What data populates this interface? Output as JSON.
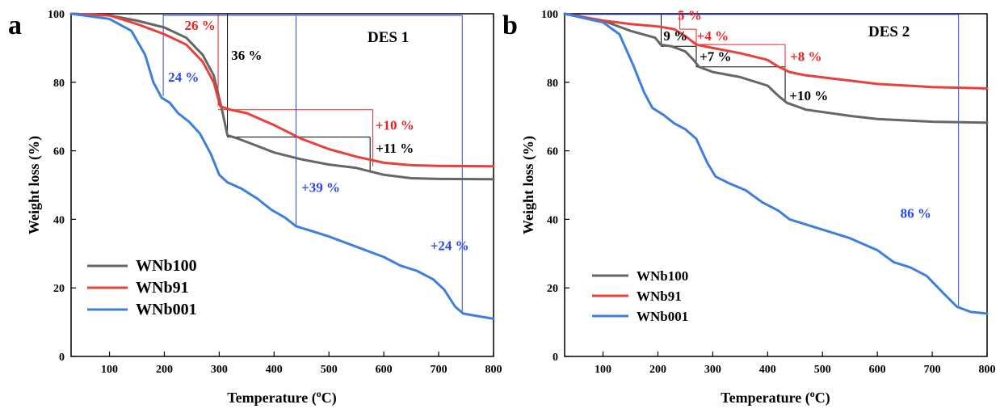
{
  "colors": {
    "WNb100": "#666666",
    "WNb91": "#e8403a",
    "WNb001": "#3f7fdc",
    "black": "#000000",
    "red": "#ee2222",
    "blue": "#2b46e6"
  },
  "chart_data": [
    {
      "panel": "a",
      "type": "line",
      "title": "DES 1",
      "xlabel": "Temperature (oC)",
      "ylabel": "Weight loss (%)",
      "xlim": [
        30,
        800
      ],
      "ylim": [
        0,
        100
      ],
      "xticks": [
        100,
        200,
        300,
        400,
        500,
        600,
        700,
        800
      ],
      "yticks": [
        0,
        20,
        40,
        60,
        80,
        100
      ],
      "legend_position": "bottom-left",
      "series": [
        {
          "name": "WNb100",
          "color": "#666666",
          "points": [
            [
              30,
              100
            ],
            [
              100,
              99.5
            ],
            [
              150,
              98
            ],
            [
              200,
              96
            ],
            [
              240,
              93
            ],
            [
              270,
              88
            ],
            [
              290,
              82
            ],
            [
              305,
              72
            ],
            [
              315,
              64.5
            ],
            [
              330,
              63.8
            ],
            [
              360,
              62
            ],
            [
              400,
              59.5
            ],
            [
              450,
              57.5
            ],
            [
              500,
              56
            ],
            [
              550,
              55
            ],
            [
              600,
              53
            ],
            [
              650,
              52
            ],
            [
              700,
              51.8
            ],
            [
              800,
              51.7
            ]
          ]
        },
        {
          "name": "WNb91",
          "color": "#e8403a",
          "points": [
            [
              30,
              100
            ],
            [
              100,
              99.5
            ],
            [
              150,
              97
            ],
            [
              200,
              94
            ],
            [
              240,
              91
            ],
            [
              270,
              86
            ],
            [
              290,
              80
            ],
            [
              302,
              73
            ],
            [
              320,
              72
            ],
            [
              350,
              71
            ],
            [
              400,
              67.5
            ],
            [
              450,
              63.5
            ],
            [
              500,
              60.5
            ],
            [
              550,
              58.3
            ],
            [
              600,
              56.5
            ],
            [
              650,
              55.8
            ],
            [
              700,
              55.6
            ],
            [
              800,
              55.5
            ]
          ]
        },
        {
          "name": "WNb001",
          "color": "#3f7fdc",
          "points": [
            [
              30,
              100
            ],
            [
              100,
              98.5
            ],
            [
              140,
              95
            ],
            [
              165,
              88
            ],
            [
              180,
              80
            ],
            [
              195,
              75.5
            ],
            [
              210,
              74
            ],
            [
              225,
              71
            ],
            [
              245,
              68.5
            ],
            [
              265,
              65
            ],
            [
              285,
              59
            ],
            [
              300,
              53
            ],
            [
              315,
              50.8
            ],
            [
              340,
              49
            ],
            [
              370,
              46
            ],
            [
              395,
              42.8
            ],
            [
              420,
              40.5
            ],
            [
              440,
              38
            ],
            [
              470,
              36.5
            ],
            [
              500,
              35
            ],
            [
              550,
              32
            ],
            [
              600,
              29
            ],
            [
              630,
              26.5
            ],
            [
              660,
              25
            ],
            [
              690,
              22.5
            ],
            [
              710,
              19.5
            ],
            [
              730,
              14.5
            ],
            [
              745,
              12.5
            ],
            [
              770,
              11.8
            ],
            [
              800,
              11
            ]
          ]
        }
      ],
      "annotations": [
        {
          "text": "26 %",
          "color": "#ee2222",
          "x": 265,
          "y": 95.3
        },
        {
          "text": "36 %",
          "color": "#000000",
          "x": 350,
          "y": 86.5
        },
        {
          "text": "24 %",
          "color": "#2b46e6",
          "x": 235,
          "y": 80.2
        },
        {
          "text": "+10 %",
          "color": "#ee2222",
          "x": 620,
          "y": 66.2
        },
        {
          "text": "+11 %",
          "color": "#000000",
          "x": 620,
          "y": 59.4
        },
        {
          "text": "+39 %",
          "color": "#2b46e6",
          "x": 485,
          "y": 48
        },
        {
          "text": "+24 %",
          "color": "#2b46e6",
          "x": 720,
          "y": 31
        }
      ],
      "brackets": [
        {
          "color": "#ee2222",
          "segments": [
            [
              [
                298,
                100
              ],
              [
                298,
                73
              ]
            ],
            [
              [
                298,
                72
              ],
              [
                580,
                72
              ]
            ],
            [
              [
                580,
                72
              ],
              [
                580,
                55.5
              ]
            ]
          ]
        },
        {
          "color": "#000000",
          "segments": [
            [
              [
                315,
                100
              ],
              [
                315,
                64
              ]
            ],
            [
              [
                315,
                64
              ],
              [
                575,
                64
              ]
            ],
            [
              [
                575,
                64
              ],
              [
                575,
                54
              ]
            ]
          ]
        },
        {
          "color": "#2b46e6",
          "segments": [
            [
              [
                198,
                100
              ],
              [
                198,
                76
              ]
            ],
            [
              [
                198,
                99.5
              ],
              [
                440,
                99.5
              ]
            ],
            [
              [
                440,
                99.5
              ],
              [
                440,
                38
              ]
            ],
            [
              [
                440,
                99.5
              ],
              [
                743,
                99.5
              ]
            ],
            [
              [
                743,
                99.5
              ],
              [
                743,
                12.5
              ]
            ]
          ]
        }
      ]
    },
    {
      "panel": "b",
      "type": "line",
      "title": "DES 2",
      "xlabel": "Temperature (oC)",
      "ylabel": "Weight loss (%)",
      "xlim": [
        30,
        800
      ],
      "ylim": [
        0,
        100
      ],
      "xticks": [
        100,
        200,
        300,
        400,
        500,
        600,
        700,
        800
      ],
      "yticks": [
        0,
        20,
        40,
        60,
        80,
        100
      ],
      "legend_position": "bottom-left",
      "series": [
        {
          "name": "WNb100",
          "color": "#666666",
          "points": [
            [
              30,
              100
            ],
            [
              100,
              98
            ],
            [
              150,
              95
            ],
            [
              195,
              93
            ],
            [
              205,
              91
            ],
            [
              225,
              90.5
            ],
            [
              250,
              89
            ],
            [
              265,
              86.5
            ],
            [
              275,
              84.5
            ],
            [
              300,
              83
            ],
            [
              350,
              81.5
            ],
            [
              400,
              79
            ],
            [
              420,
              76
            ],
            [
              435,
              74
            ],
            [
              470,
              72
            ],
            [
              550,
              70.2
            ],
            [
              600,
              69.3
            ],
            [
              700,
              68.5
            ],
            [
              800,
              68.2
            ]
          ]
        },
        {
          "name": "WNb91",
          "color": "#e8403a",
          "points": [
            [
              30,
              100
            ],
            [
              100,
              98
            ],
            [
              150,
              97
            ],
            [
              200,
              96.3
            ],
            [
              230,
              95.5
            ],
            [
              250,
              93.5
            ],
            [
              270,
              91
            ],
            [
              300,
              90
            ],
            [
              350,
              88.5
            ],
            [
              400,
              86.5
            ],
            [
              420,
              84.5
            ],
            [
              440,
              83
            ],
            [
              470,
              82
            ],
            [
              550,
              80.5
            ],
            [
              600,
              79.5
            ],
            [
              700,
              78.6
            ],
            [
              800,
              78.2
            ]
          ]
        },
        {
          "name": "WNb001",
          "color": "#3f7fdc",
          "points": [
            [
              30,
              100
            ],
            [
              100,
              97.5
            ],
            [
              130,
              94
            ],
            [
              155,
              85
            ],
            [
              175,
              77
            ],
            [
              190,
              72.5
            ],
            [
              210,
              70.5
            ],
            [
              230,
              68
            ],
            [
              250,
              66.3
            ],
            [
              270,
              63.5
            ],
            [
              290,
              56.5
            ],
            [
              305,
              52.5
            ],
            [
              330,
              50.5
            ],
            [
              360,
              48.5
            ],
            [
              390,
              45
            ],
            [
              420,
              42.5
            ],
            [
              440,
              40
            ],
            [
              470,
              38.5
            ],
            [
              500,
              37
            ],
            [
              550,
              34.5
            ],
            [
              600,
              31
            ],
            [
              630,
              27.5
            ],
            [
              660,
              26
            ],
            [
              690,
              23.5
            ],
            [
              720,
              18.5
            ],
            [
              745,
              14.5
            ],
            [
              770,
              13
            ],
            [
              800,
              12.5
            ]
          ]
        }
      ],
      "annotations": [
        {
          "text": "5 %",
          "color": "#ee2222",
          "x": 258,
          "y": 98.2
        },
        {
          "text": "9 %",
          "color": "#000000",
          "x": 232,
          "y": 92.2
        },
        {
          "text": "+4 %",
          "color": "#ee2222",
          "x": 300,
          "y": 92.2
        },
        {
          "text": "+7 %",
          "color": "#000000",
          "x": 305,
          "y": 86.2
        },
        {
          "text": "+8 %",
          "color": "#ee2222",
          "x": 470,
          "y": 86.2
        },
        {
          "text": "+10 %",
          "color": "#000000",
          "x": 475,
          "y": 74.8
        },
        {
          "text": "86 %",
          "color": "#2b46e6",
          "x": 670,
          "y": 40.4
        }
      ],
      "brackets": [
        {
          "color": "#000000",
          "segments": [
            [
              [
                206,
                100
              ],
              [
                206,
                90.5
              ]
            ],
            [
              [
                206,
                90.5
              ],
              [
                270,
                90.5
              ]
            ],
            [
              [
                270,
                90.5
              ],
              [
                270,
                84.5
              ]
            ],
            [
              [
                270,
                84.5
              ],
              [
                432,
                84.5
              ]
            ],
            [
              [
                432,
                84.5
              ],
              [
                432,
                74
              ]
            ]
          ]
        },
        {
          "color": "#ee2222",
          "segments": [
            [
              [
                240,
                100
              ],
              [
                240,
                95.5
              ]
            ],
            [
              [
                240,
                95.5
              ],
              [
                270,
                95.5
              ]
            ],
            [
              [
                270,
                95.5
              ],
              [
                270,
                91
              ]
            ],
            [
              [
                270,
                91
              ],
              [
                268,
                91
              ]
            ],
            [
              [
                300,
                91
              ],
              [
                300,
                91
              ]
            ],
            [
              [
                270,
                91
              ],
              [
                300,
                91
              ]
            ],
            [
              [
                300,
                91
              ],
              [
                300,
                91
              ]
            ],
            [
              [
                300,
                91
              ],
              [
                300,
                91
              ]
            ],
            [
              [
                300,
                91
              ],
              [
                300,
                91
              ]
            ]
          ]
        },
        {
          "color": "#ee2222",
          "segments": [
            [
              [
                300,
                91
              ],
              [
                300,
                91
              ]
            ],
            [
              [
                300,
                91
              ],
              [
                300,
                91
              ]
            ],
            [
              [
                300,
                91
              ],
              [
                300,
                91
              ]
            ],
            [
              [
                300,
                91
              ],
              [
                300,
                91
              ]
            ],
            [
              [
                300,
                91
              ],
              [
                300,
                91
              ]
            ],
            [
              [
                300,
                91
              ],
              [
                300,
                91
              ]
            ],
            [
              [
                300,
                91
              ],
              [
                300,
                91
              ]
            ],
            [
              [
                300,
                91
              ],
              [
                300,
                91
              ]
            ],
            [
              [
                270,
                91
              ],
              [
                432,
                91
              ]
            ],
            [
              [
                432,
                91
              ],
              [
                432,
                83.5
              ]
            ]
          ]
        },
        {
          "color": "#2b46e6",
          "segments": [
            [
              [
                30,
                99.8
              ],
              [
                748,
                99.8
              ]
            ],
            [
              [
                748,
                99.8
              ],
              [
                748,
                14.5
              ]
            ]
          ]
        }
      ]
    }
  ],
  "panels": {
    "a": {
      "letter": "a"
    },
    "b": {
      "letter": "b"
    }
  },
  "legend": {
    "a": [
      {
        "label": "WNb100",
        "color": "#666666"
      },
      {
        "label": "WNb91",
        "color": "#e8403a"
      },
      {
        "label": "WNb001",
        "color": "#3f7fdc"
      }
    ],
    "b": [
      {
        "label": "WNb100",
        "color": "#666666"
      },
      {
        "label": "WNb91",
        "color": "#e8403a"
      },
      {
        "label": "WNb001",
        "color": "#3f7fdc"
      }
    ]
  }
}
